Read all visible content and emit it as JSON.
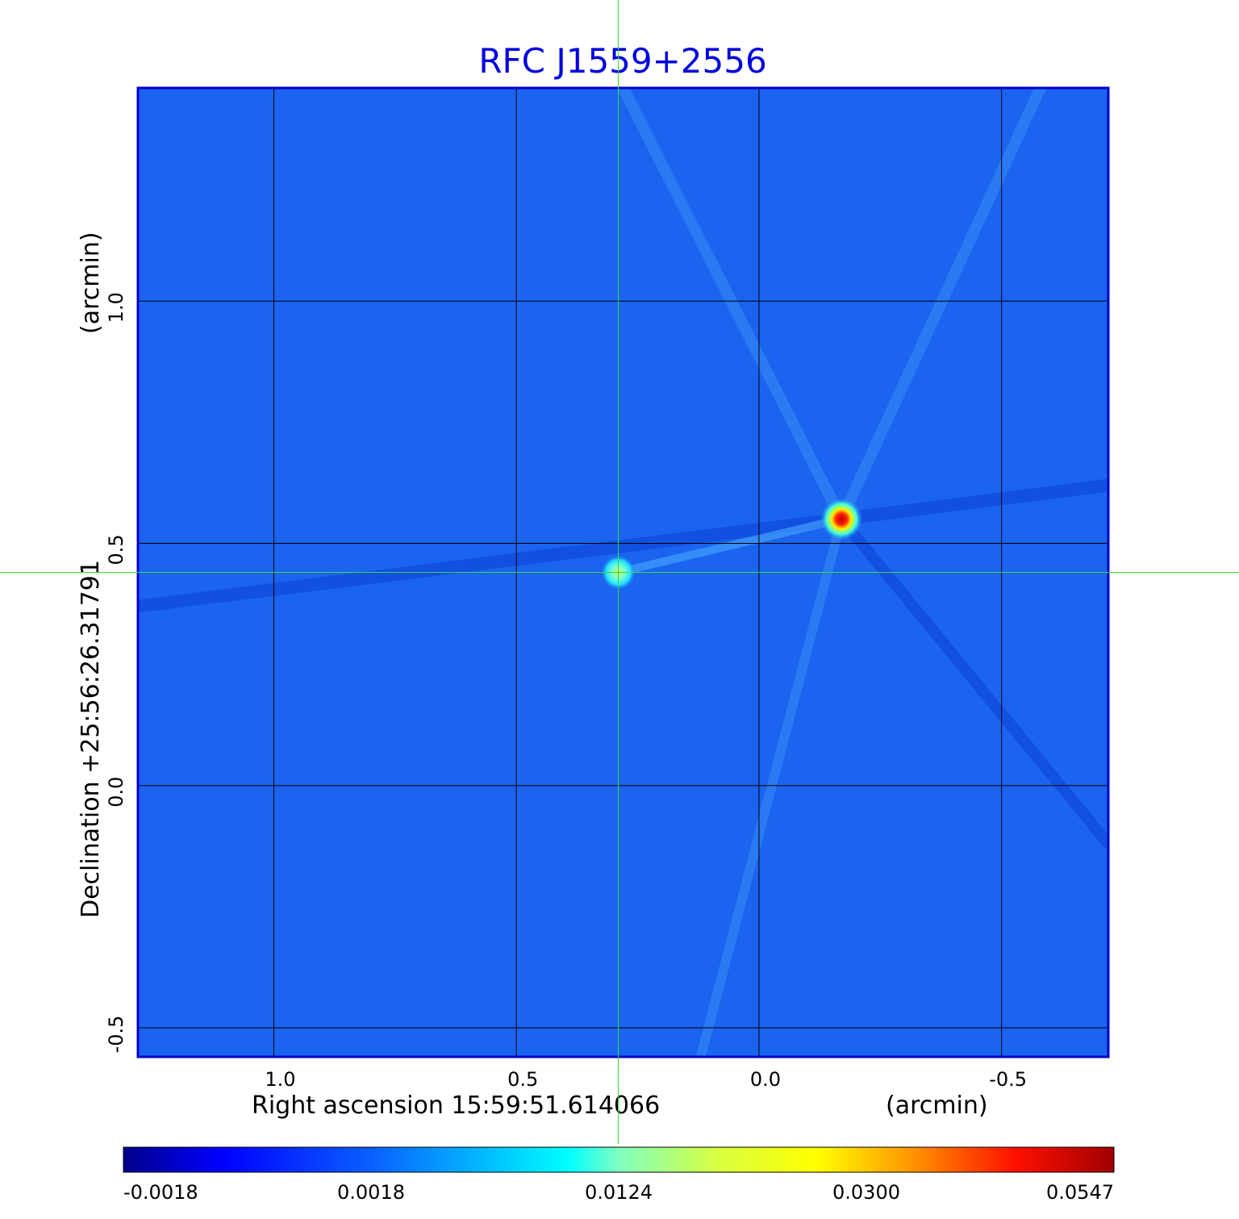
{
  "chart_data": {
    "type": "heatmap",
    "title": "RFC J1559+2556",
    "xaxis": {
      "label": "Right ascension  15:59:51.614066",
      "unit": "(arcmin)",
      "range": [
        1.28,
        -0.72
      ],
      "ticks": [
        1.0,
        0.5,
        0.0,
        -0.5
      ],
      "tick_labels": [
        "1.0",
        "0.5",
        "0.0",
        "-0.5"
      ],
      "reversed": true
    },
    "yaxis": {
      "label": "Declination  +25:56:26.31791",
      "unit": "(arcmin)",
      "range": [
        -0.56,
        1.44
      ],
      "ticks": [
        -0.5,
        0.0,
        0.5,
        1.0
      ],
      "tick_labels": [
        "-0.5",
        "0.0",
        "0.5",
        "1.0"
      ]
    },
    "grid": true,
    "crosshair": {
      "x": 0.29,
      "y": 0.44
    },
    "sources": [
      {
        "x": 0.29,
        "y": 0.44,
        "peak": 0.012
      },
      {
        "x": -0.17,
        "y": 0.55,
        "peak": 0.0547
      }
    ],
    "colorbar": {
      "colormap": "jet",
      "range": [
        -0.0018,
        0.0547
      ],
      "tick_labels": [
        "-0.0018",
        "0.0018",
        "0.0124",
        "0.0300",
        "0.0547"
      ]
    },
    "colors": {
      "background_field": "#1a64f0",
      "title": "#0000dd",
      "frame": "#0000cc",
      "crosshair": "#33dd33",
      "grid": "#000000"
    }
  }
}
